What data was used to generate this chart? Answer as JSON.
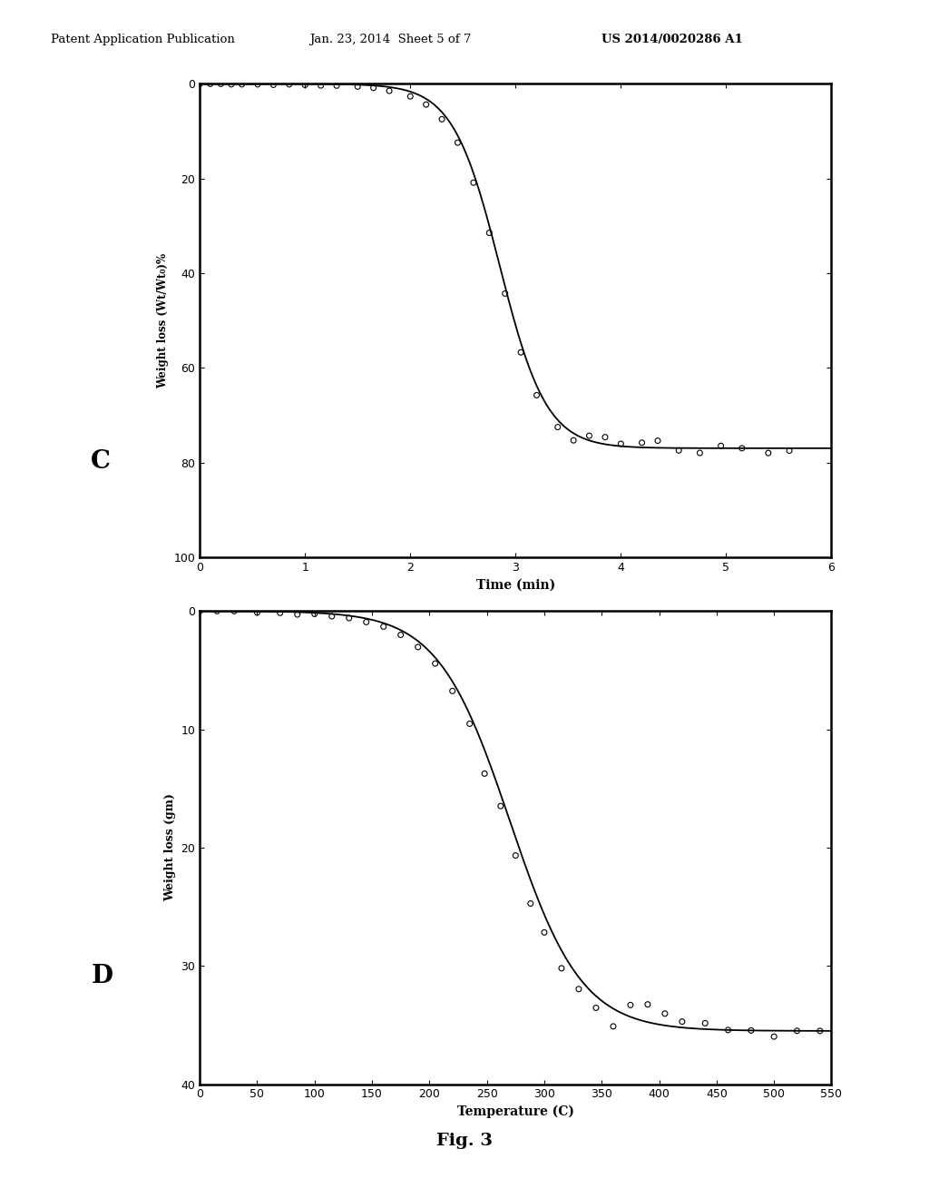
{
  "header_left": "Patent Application Publication",
  "header_mid": "Jan. 23, 2014  Sheet 5 of 7",
  "header_right": "US 2014/0020286 A1",
  "fig_label": "Fig. 3",
  "chart_C": {
    "label": "C",
    "xlabel": "Time (min)",
    "ylabel": "Weight loss (Wt/Wt₀)%",
    "xlim": [
      0,
      6
    ],
    "ylim": [
      100,
      0
    ],
    "xticks": [
      0,
      1,
      2,
      3,
      4,
      5,
      6
    ],
    "yticks": [
      0,
      20,
      40,
      60,
      80,
      100
    ],
    "sigmoid_L": 77.0,
    "sigmoid_k": 4.5,
    "sigmoid_t0": 2.85,
    "scatter_x": [
      0.0,
      0.1,
      0.2,
      0.3,
      0.4,
      0.55,
      0.7,
      0.85,
      1.0,
      1.15,
      1.3,
      1.5,
      1.65,
      1.8,
      2.0,
      2.15,
      2.3,
      2.45,
      2.6,
      2.75,
      2.9,
      3.05,
      3.2,
      3.4,
      3.55,
      3.7,
      3.85,
      4.0,
      4.2,
      4.35,
      4.55,
      4.75,
      4.95,
      5.15,
      5.4,
      5.6
    ],
    "scatter_noise": [
      0.0,
      0.0,
      0.0,
      0.1,
      0.1,
      0.1,
      0.2,
      0.1,
      0.2,
      0.3,
      0.3,
      0.4,
      0.5,
      0.8,
      1.0,
      1.2,
      1.5,
      1.5,
      2.0,
      1.5,
      1.5,
      2.0,
      2.0,
      1.5,
      1.5,
      -1.0,
      -1.5,
      -0.5,
      -1.0,
      -1.5,
      0.5,
      1.0,
      -0.5,
      0.0,
      1.0,
      0.5
    ]
  },
  "chart_D": {
    "label": "D",
    "xlabel": "Temperature (C)",
    "ylabel": "Weight loss (gm)",
    "xlim": [
      0,
      550
    ],
    "ylim": [
      40,
      0
    ],
    "xticks": [
      0,
      50,
      100,
      150,
      200,
      250,
      300,
      350,
      400,
      450,
      500,
      550
    ],
    "yticks": [
      0,
      10,
      20,
      30,
      40
    ],
    "sigmoid_L": 35.5,
    "sigmoid_k": 0.032,
    "sigmoid_t0": 270.0,
    "scatter_x": [
      0,
      15,
      30,
      50,
      70,
      85,
      100,
      115,
      130,
      145,
      160,
      175,
      190,
      205,
      220,
      235,
      248,
      262,
      275,
      288,
      300,
      315,
      330,
      345,
      360,
      375,
      390,
      405,
      420,
      440,
      460,
      480,
      500,
      520,
      540
    ],
    "scatter_noise": [
      0.0,
      0.0,
      0.0,
      0.1,
      0.1,
      0.2,
      0.1,
      0.2,
      0.2,
      0.3,
      0.3,
      0.4,
      0.5,
      0.5,
      0.8,
      0.8,
      2.0,
      1.0,
      1.5,
      2.0,
      1.5,
      1.5,
      1.0,
      1.0,
      1.5,
      -1.0,
      -1.5,
      -1.0,
      -0.5,
      -0.5,
      0.0,
      0.0,
      0.5,
      0.0,
      0.0
    ]
  },
  "bg_color": "#ffffff",
  "line_color": "#000000"
}
